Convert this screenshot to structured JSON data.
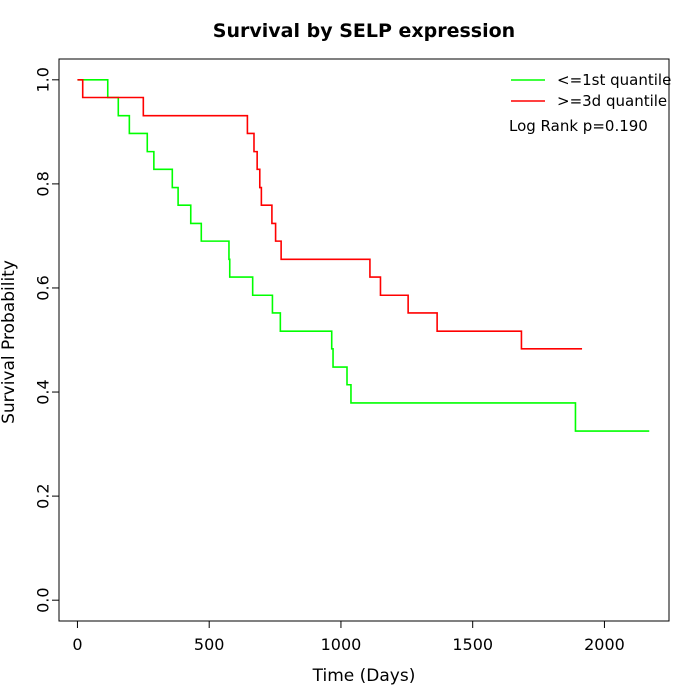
{
  "chart_data": {
    "type": "line",
    "title": "Survival by SELP expression",
    "xlabel": "Time (Days)",
    "ylabel": "Survival Probability",
    "xlim": [
      -70,
      2245
    ],
    "ylim": [
      -0.04,
      1.04
    ],
    "x_ticks": [
      0,
      500,
      1000,
      1500,
      2000
    ],
    "y_ticks": [
      0.0,
      0.2,
      0.4,
      0.6,
      0.8,
      1.0
    ],
    "x_tick_labels": [
      "0",
      "500",
      "1000",
      "1500",
      "2000"
    ],
    "y_tick_labels": [
      "0.0",
      "0.2",
      "0.4",
      "0.6",
      "0.8",
      "1.0"
    ],
    "legend_position": "top-right",
    "annotation": "Log Rank p=0.190",
    "series": [
      {
        "name": "<=1st quantile",
        "color": "#00ff00",
        "step": true,
        "x": [
          0,
          115,
          155,
          197,
          265,
          290,
          360,
          382,
          430,
          470,
          575,
          578,
          665,
          740,
          770,
          965,
          970,
          1023,
          1038,
          1890,
          2170
        ],
        "y": [
          1.0,
          0.966,
          0.931,
          0.897,
          0.862,
          0.828,
          0.793,
          0.759,
          0.724,
          0.69,
          0.655,
          0.621,
          0.586,
          0.552,
          0.517,
          0.483,
          0.448,
          0.414,
          0.379,
          0.325,
          0.325
        ]
      },
      {
        "name": ">=3d quantile",
        "color": "#ff0000",
        "step": true,
        "x": [
          0,
          20,
          250,
          645,
          670,
          682,
          692,
          698,
          738,
          752,
          773,
          1110,
          1150,
          1255,
          1365,
          1685,
          1915
        ],
        "y": [
          1.0,
          0.966,
          0.931,
          0.897,
          0.862,
          0.828,
          0.793,
          0.759,
          0.724,
          0.69,
          0.655,
          0.621,
          0.586,
          0.552,
          0.517,
          0.483,
          0.483
        ]
      }
    ]
  }
}
